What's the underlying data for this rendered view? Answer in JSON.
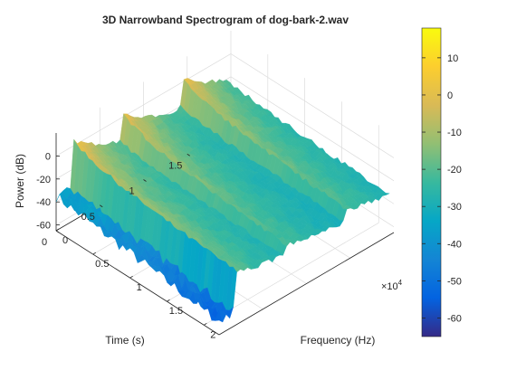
{
  "chart_data": {
    "type": "surface",
    "title": "3D Narrowband Spectrogram of dog-bark-2.wav",
    "xlabel": "Frequency (Hz)",
    "ylabel": "Time (s)",
    "zlabel": "Power (dB)",
    "x_exponent_label": "×10",
    "x_exponent_power": "4",
    "xlim": [
      0,
      22050
    ],
    "ylim": [
      0,
      2
    ],
    "zlim": [
      -65,
      20
    ],
    "x_ticks": [
      {
        "value": 0,
        "label": "0"
      },
      {
        "value": 5000,
        "label": "0.5"
      },
      {
        "value": 10000,
        "label": "1"
      },
      {
        "value": 15000,
        "label": "1.5"
      },
      {
        "value": 20000,
        "label": "2"
      }
    ],
    "y_ticks": [
      {
        "value": 0,
        "label": "0"
      },
      {
        "value": 0.5,
        "label": "0.5"
      },
      {
        "value": 1,
        "label": "1"
      },
      {
        "value": 1.5,
        "label": "1.5"
      }
    ],
    "z_ticks": [
      {
        "value": 0,
        "label": "0"
      },
      {
        "value": -20,
        "label": "-20"
      },
      {
        "value": -40,
        "label": "-40"
      },
      {
        "value": -60,
        "label": "-60"
      }
    ],
    "grid": true,
    "colormap": "parula",
    "colorbar": {
      "range": [
        -65,
        18
      ],
      "ticks": [
        {
          "value": 10,
          "label": "10"
        },
        {
          "value": 0,
          "label": "0"
        },
        {
          "value": -10,
          "label": "-10"
        },
        {
          "value": -20,
          "label": "-20"
        },
        {
          "value": -30,
          "label": "-30"
        },
        {
          "value": -40,
          "label": "-40"
        },
        {
          "value": -50,
          "label": "-50"
        },
        {
          "value": -60,
          "label": "-60"
        }
      ]
    },
    "bark_onsets_s": [
      0.2,
      0.75,
      1.45
    ],
    "bark_peak_db": [
      5,
      3,
      3
    ],
    "bark_peak_freq_hz": 1000,
    "floor_db": -35
  }
}
